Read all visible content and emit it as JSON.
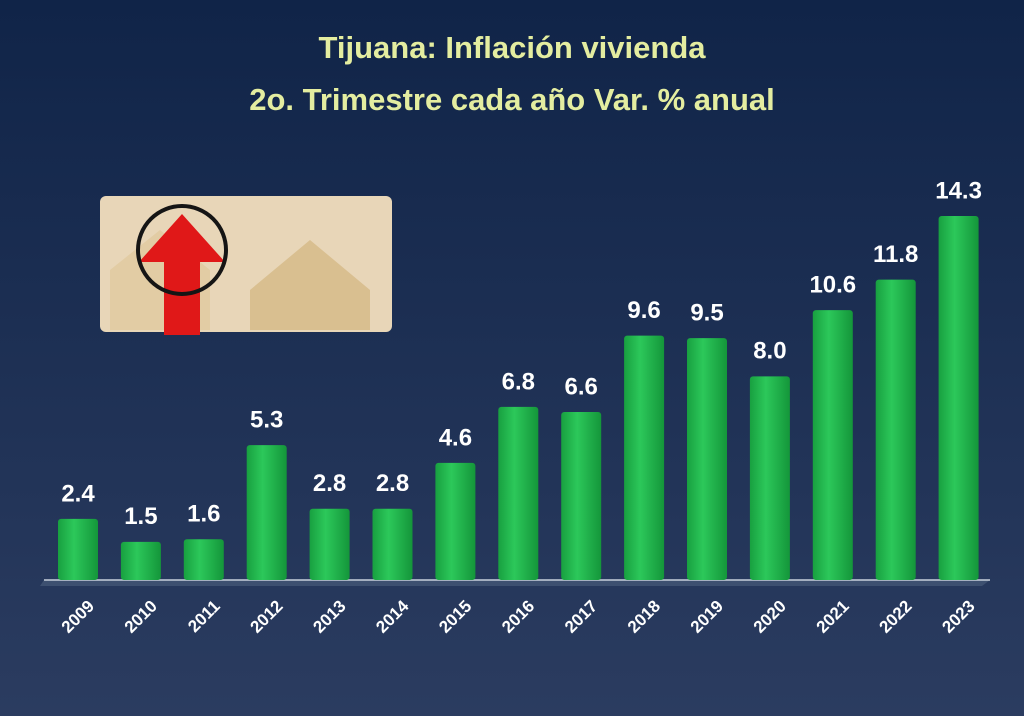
{
  "chart_data": {
    "type": "bar",
    "title": "Tijuana: Inflación vivienda",
    "subtitle": "2o. Trimestre cada año Var. % anual",
    "categories": [
      "2009",
      "2010",
      "2011",
      "2012",
      "2013",
      "2014",
      "2015",
      "2016",
      "2017",
      "2018",
      "2019",
      "2020",
      "2021",
      "2022",
      "2023"
    ],
    "values": [
      2.4,
      1.5,
      1.6,
      5.3,
      2.8,
      2.8,
      4.6,
      6.8,
      6.6,
      9.6,
      9.5,
      8.0,
      10.6,
      11.8,
      14.3
    ],
    "value_labels": [
      "2.4",
      "1.5",
      "1.6",
      "5.3",
      "2.8",
      "2.8",
      "4.6",
      "6.8",
      "6.6",
      "9.6",
      "9.5",
      "8.0",
      "10.6",
      "11.8",
      "14.3"
    ],
    "color": "#1fb24a"
  }
}
